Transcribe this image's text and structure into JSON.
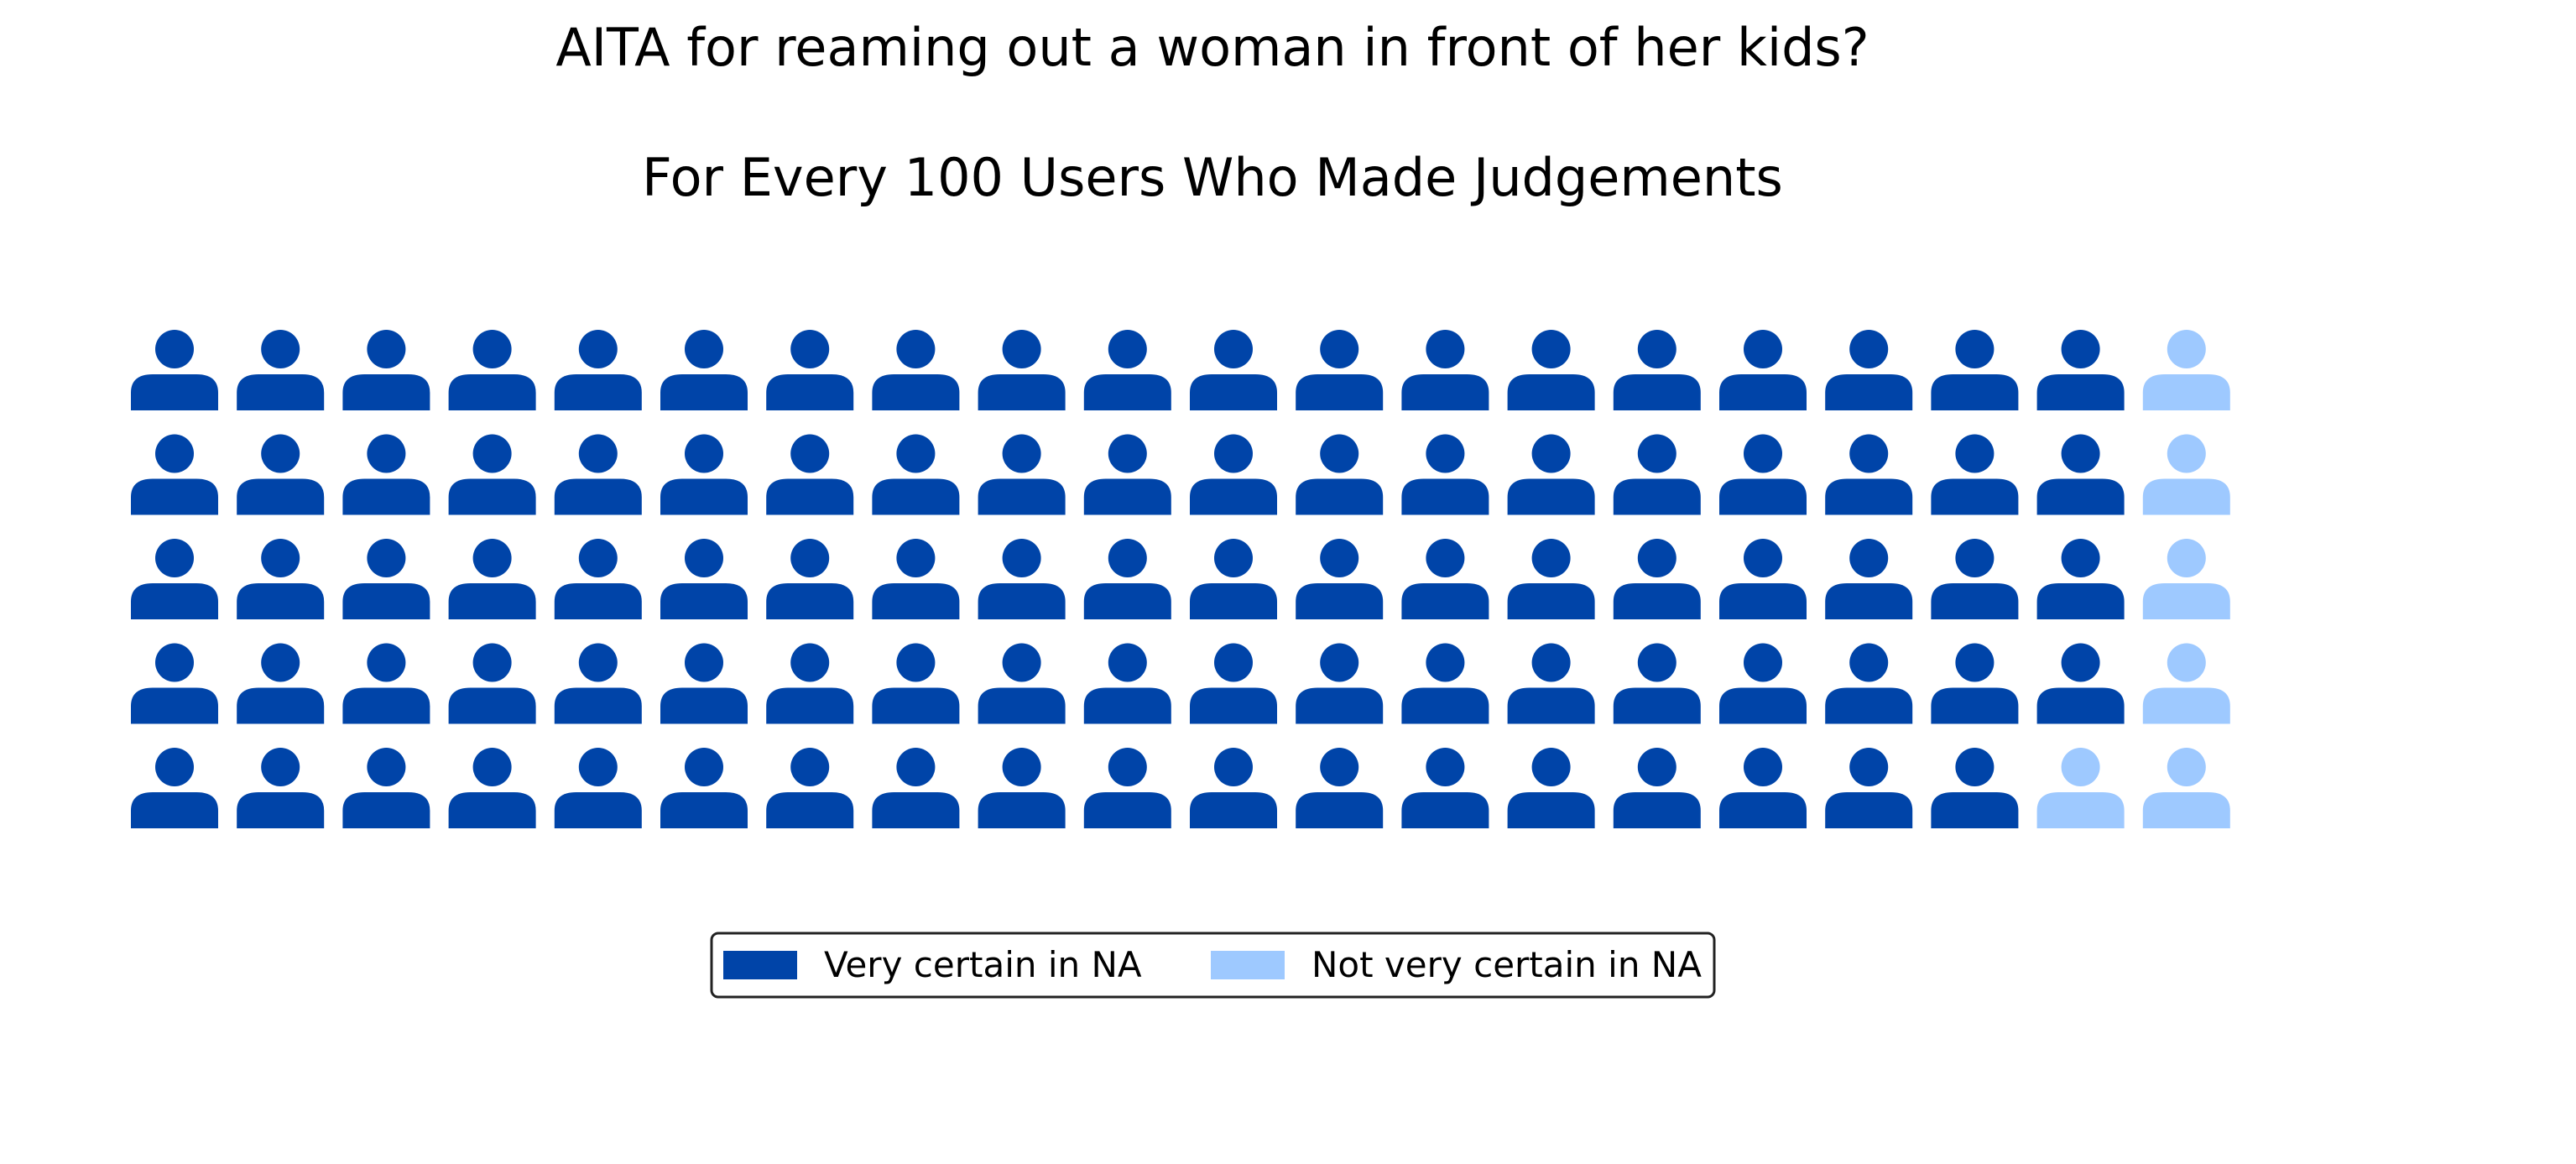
{
  "chart_data": {
    "type": "waffle",
    "title": "AITA for reaming out a woman in front of her kids?",
    "subtitle": "For Every 100 Users Who Made Judgements",
    "grid": {
      "rows": 5,
      "columns": 20
    },
    "icon": "person-icon",
    "series": [
      {
        "name": "Very certain in NA",
        "value": 94,
        "color": "#0044a8"
      },
      {
        "name": "Not very certain in NA",
        "value": 6,
        "color": "#9ec9ff"
      }
    ],
    "legend_position": "bottom-center"
  }
}
